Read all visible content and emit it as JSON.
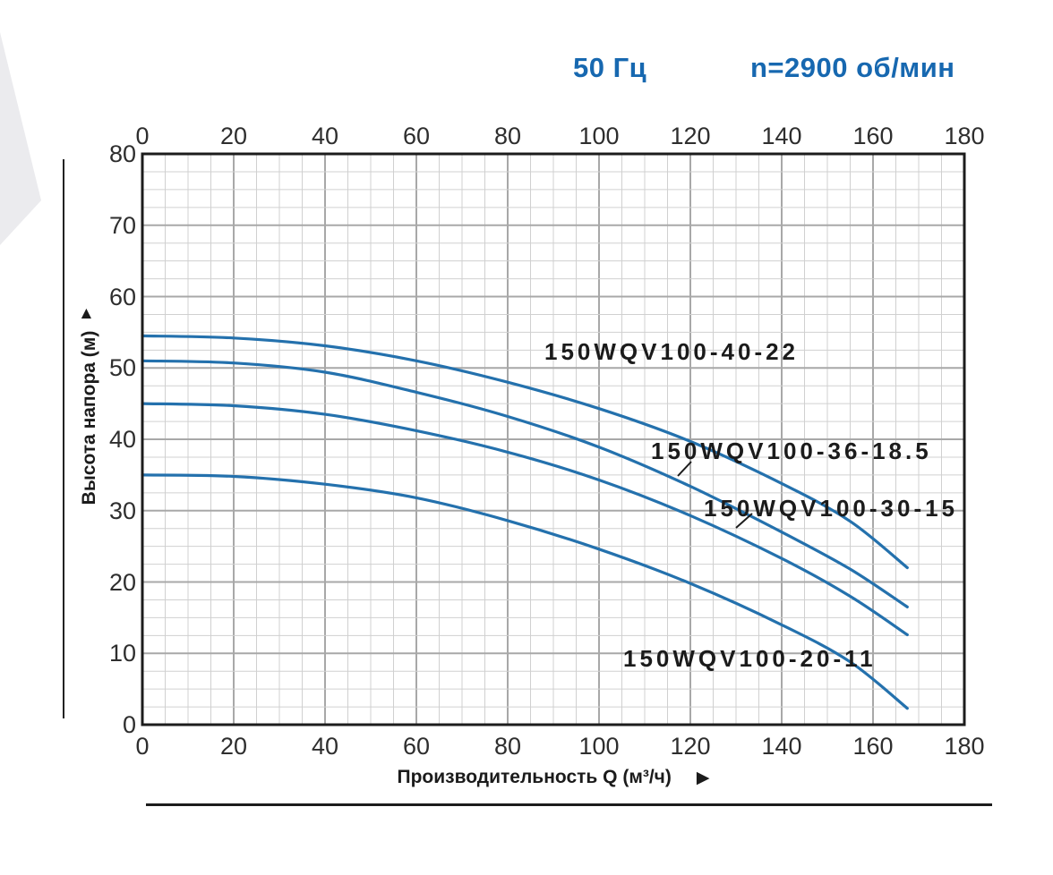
{
  "header": {
    "frequency_label": "50 Гц",
    "speed_label": "n=2900 об/мин",
    "text_color": "#1768b0"
  },
  "icons": {
    "up_arrow": "▲",
    "right_arrow": "▶"
  },
  "colors": {
    "curve": "#2471ad",
    "grid_minor": "#d0d0d0",
    "grid_major": "#a8a8a8",
    "plot_border": "#1c1c1c",
    "tick_text": "#2e2e2e",
    "corner_decor": "#ebebee"
  },
  "chart_data": {
    "type": "line",
    "title": "",
    "xlabel": "Производительность Q (м³/ч)",
    "ylabel": "Высота напора (м)",
    "xlim": [
      0,
      180
    ],
    "ylim": [
      0,
      80
    ],
    "x_major_step": 20,
    "x_minor_step": 5,
    "y_major_step": 10,
    "y_minor_step": 2.5,
    "x_ticks": [
      0,
      20,
      40,
      60,
      80,
      100,
      120,
      140,
      160,
      180
    ],
    "x_ticks_shown_top_and_bottom": true,
    "y_ticks": [
      0,
      10,
      20,
      30,
      40,
      50,
      60,
      70,
      80
    ],
    "grid": true,
    "legend_position": "inline-labels",
    "series": [
      {
        "name": "150WQV100-40-22",
        "points": [
          [
            0,
            54.5
          ],
          [
            20,
            54.2
          ],
          [
            40,
            53.1
          ],
          [
            60,
            51.0
          ],
          [
            80,
            48.0
          ],
          [
            100,
            44.3
          ],
          [
            120,
            39.7
          ],
          [
            140,
            33.8
          ],
          [
            155,
            28.5
          ],
          [
            167.5,
            22.0
          ]
        ]
      },
      {
        "name": "150WQV100-36-18.5",
        "points": [
          [
            0,
            51.0
          ],
          [
            20,
            50.7
          ],
          [
            40,
            49.4
          ],
          [
            60,
            46.6
          ],
          [
            80,
            43.2
          ],
          [
            100,
            38.9
          ],
          [
            120,
            33.4
          ],
          [
            140,
            27.0
          ],
          [
            155,
            21.8
          ],
          [
            167.5,
            16.5
          ]
        ]
      },
      {
        "name": "150WQV100-30-15",
        "points": [
          [
            0,
            45.0
          ],
          [
            20,
            44.7
          ],
          [
            40,
            43.5
          ],
          [
            60,
            41.2
          ],
          [
            80,
            38.2
          ],
          [
            100,
            34.3
          ],
          [
            120,
            29.3
          ],
          [
            140,
            23.3
          ],
          [
            155,
            18.0
          ],
          [
            167.5,
            12.6
          ]
        ]
      },
      {
        "name": "150WQV100-20-11",
        "points": [
          [
            0,
            35.0
          ],
          [
            20,
            34.8
          ],
          [
            40,
            33.7
          ],
          [
            60,
            31.8
          ],
          [
            80,
            28.6
          ],
          [
            100,
            24.6
          ],
          [
            120,
            19.8
          ],
          [
            140,
            14.0
          ],
          [
            155,
            8.8
          ],
          [
            167.5,
            2.3
          ]
        ]
      }
    ]
  }
}
